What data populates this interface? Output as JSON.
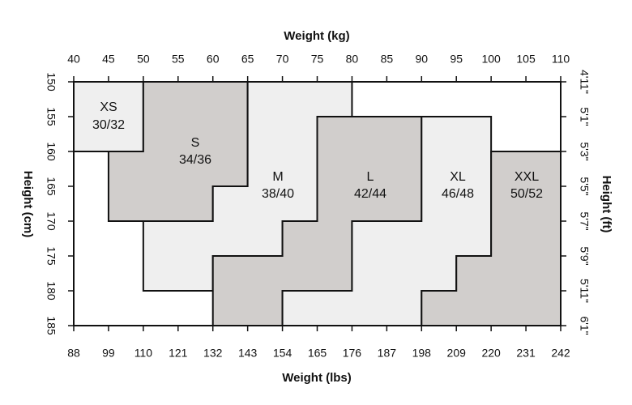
{
  "top_axis": {
    "label": "Weight (kg)",
    "ticks": [
      40,
      45,
      50,
      55,
      60,
      65,
      70,
      75,
      80,
      85,
      90,
      95,
      100,
      105,
      110
    ]
  },
  "bottom_axis": {
    "label": "Weight (lbs)",
    "ticks": [
      88,
      99,
      110,
      121,
      132,
      143,
      154,
      165,
      176,
      187,
      198,
      209,
      220,
      231,
      242
    ]
  },
  "left_axis": {
    "label": "Height (cm)",
    "ticks": [
      150,
      155,
      160,
      165,
      170,
      175,
      180,
      185
    ]
  },
  "right_axis": {
    "label": "Height (ft)",
    "ticks": [
      "4'11\"",
      "5'1\"",
      "5'3\"",
      "5'5\"",
      "5'7\"",
      "5'9\"",
      "5'11\"",
      "6'1\""
    ]
  },
  "sizes": [
    {
      "name": "XS",
      "range": "30/32",
      "color": "#efefef",
      "outline": [
        [
          40,
          150
        ],
        [
          50,
          150
        ],
        [
          50,
          160
        ],
        [
          40,
          160
        ]
      ]
    },
    {
      "name": "S",
      "range": "34/36",
      "color": "#d1cecc",
      "outline": [
        [
          50,
          150
        ],
        [
          65,
          150
        ],
        [
          65,
          165
        ],
        [
          60,
          165
        ],
        [
          60,
          170
        ],
        [
          45,
          170
        ],
        [
          45,
          160
        ],
        [
          50,
          160
        ]
      ]
    },
    {
      "name": "M",
      "range": "38/40",
      "color": "#efefef",
      "outline": [
        [
          65,
          150
        ],
        [
          80,
          150
        ],
        [
          80,
          155
        ],
        [
          75,
          155
        ],
        [
          75,
          170
        ],
        [
          70,
          170
        ],
        [
          70,
          175
        ],
        [
          60,
          175
        ],
        [
          60,
          180
        ],
        [
          50,
          180
        ],
        [
          50,
          170
        ],
        [
          60,
          170
        ],
        [
          60,
          165
        ],
        [
          65,
          165
        ]
      ]
    },
    {
      "name": "L",
      "range": "42/44",
      "color": "#d1cecc",
      "outline": [
        [
          75,
          155
        ],
        [
          90,
          155
        ],
        [
          90,
          170
        ],
        [
          80,
          170
        ],
        [
          80,
          180
        ],
        [
          70,
          180
        ],
        [
          70,
          185
        ],
        [
          60,
          185
        ],
        [
          60,
          175
        ],
        [
          70,
          175
        ],
        [
          70,
          170
        ],
        [
          75,
          170
        ]
      ]
    },
    {
      "name": "XL",
      "range": "46/48",
      "color": "#efefef",
      "outline": [
        [
          90,
          155
        ],
        [
          100,
          155
        ],
        [
          100,
          175
        ],
        [
          95,
          175
        ],
        [
          95,
          180
        ],
        [
          90,
          180
        ],
        [
          90,
          185
        ],
        [
          70,
          185
        ],
        [
          70,
          180
        ],
        [
          80,
          180
        ],
        [
          80,
          170
        ],
        [
          90,
          170
        ]
      ]
    },
    {
      "name": "XXL",
      "range": "50/52",
      "color": "#d1cecc",
      "outline": [
        [
          100,
          160
        ],
        [
          110,
          160
        ],
        [
          110,
          185
        ],
        [
          90,
          185
        ],
        [
          90,
          180
        ],
        [
          95,
          180
        ],
        [
          95,
          175
        ],
        [
          100,
          175
        ]
      ]
    }
  ]
}
